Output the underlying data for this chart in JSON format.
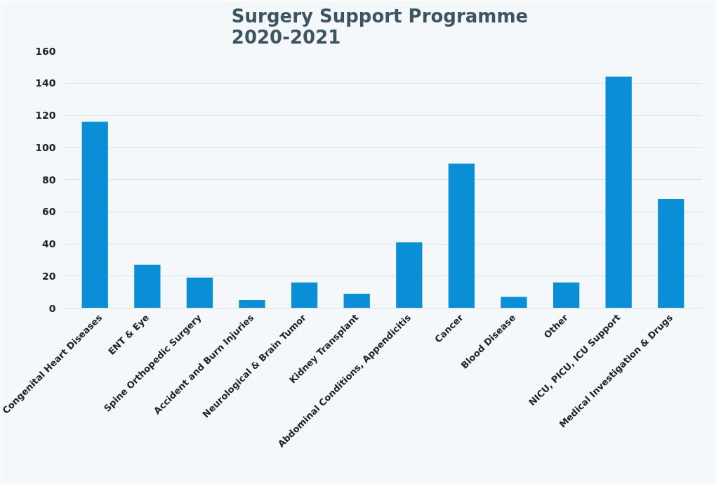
{
  "chart_data": {
    "type": "bar",
    "title": "Surgery  Support Programme\n2020-2021",
    "categories": [
      "Congenital Heart Diseases",
      "ENT & Eye",
      "Spine Orthopedic Surgery",
      "Accident and Burn Injuries",
      "Neurological & Brain Tumor",
      "Kidney Transplant",
      "Abdominal Conditions, Appendicitis",
      "Cancer",
      "Blood Disease",
      "Other",
      "NICU, PICU, ICU Support",
      "Medical Investigation & Drugs"
    ],
    "values": [
      116,
      27,
      19,
      5,
      16,
      9,
      41,
      90,
      7,
      16,
      144,
      68
    ],
    "color": "#0a8fd6",
    "ylim": [
      0,
      160
    ],
    "yticks": [
      0,
      20,
      40,
      60,
      80,
      100,
      120,
      140,
      160
    ],
    "grid": "y"
  }
}
